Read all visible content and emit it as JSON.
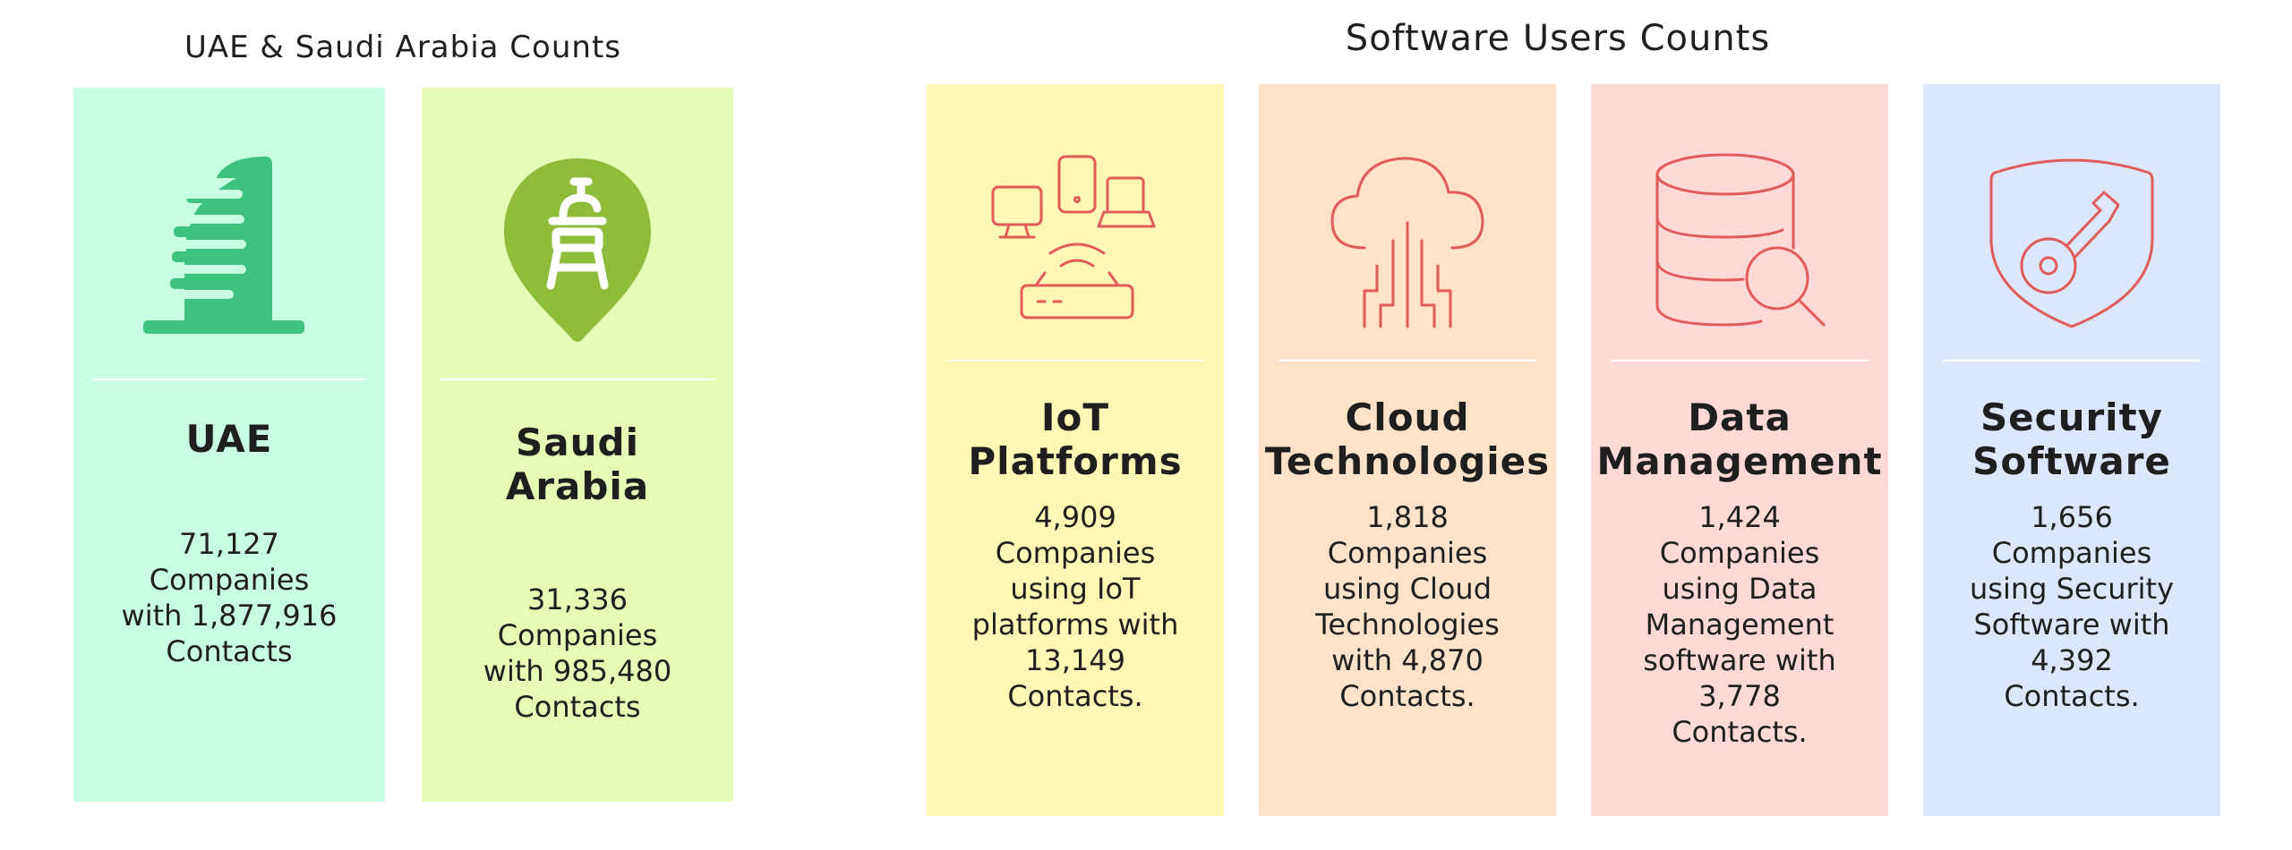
{
  "regions_heading": "UAE & Saudi Arabia Counts",
  "software_heading": "Software Users Counts",
  "regions": [
    {
      "title": "UAE",
      "desc_lines": [
        "71,127",
        "Companies",
        "with 1,877,916",
        "Contacts"
      ],
      "bg_color": "#c8fde3",
      "icon_color": "#3ec27f",
      "icon": "building-icon"
    },
    {
      "title": "Saudi\nArabia",
      "desc_lines": [
        "31,336",
        "Companies",
        "with 985,480",
        "Contacts"
      ],
      "bg_color": "#e6fcb6",
      "icon_color": "#8fbd3b",
      "icon": "landmark-pin-icon"
    }
  ],
  "software": [
    {
      "title": "IoT\nPlatforms",
      "desc_lines": [
        "4,909",
        "Companies",
        "using IoT",
        "platforms with",
        "13,149",
        "Contacts."
      ],
      "bg_color": "#fff8b5",
      "icon": "iot-devices-icon"
    },
    {
      "title": "Cloud\nTechnologies",
      "desc_lines": [
        "1,818",
        "Companies",
        "using Cloud",
        "Technologies",
        "with 4,870",
        "Contacts."
      ],
      "bg_color": "#ffe2c8",
      "icon": "cloud-circuit-icon"
    },
    {
      "title": "Data\nManagement",
      "desc_lines": [
        "1,424",
        "Companies",
        "using Data",
        "Management",
        "software with",
        "3,778",
        "Contacts."
      ],
      "bg_color": "#ffd9d6",
      "icon": "database-search-icon"
    },
    {
      "title": "Security\nSoftware",
      "desc_lines": [
        "1,656",
        "Companies",
        "using Security",
        "Software with",
        "4,392",
        "Contacts."
      ],
      "bg_color": "#dce6fc",
      "icon": "shield-key-icon"
    }
  ],
  "icon_stroke_color": "#e15b58"
}
